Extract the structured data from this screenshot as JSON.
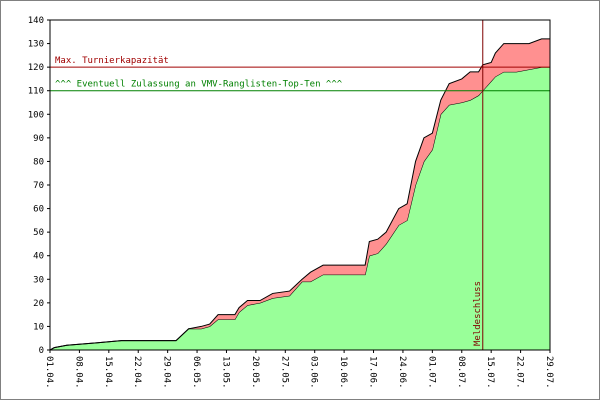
{
  "chart_data": {
    "type": "stacked-area",
    "x": [
      "01.04.",
      "02.04.",
      "05.04.",
      "12.04.",
      "18.04.",
      "01.05.",
      "04.05.",
      "07.05.",
      "09.05.",
      "11.05.",
      "15.05.",
      "16.05.",
      "18.05.",
      "21.05.",
      "24.05.",
      "28.05.",
      "31.05.",
      "02.06.",
      "05.06.",
      "09.06.",
      "15.06.",
      "16.06.",
      "18.06.",
      "20.06.",
      "23.06.",
      "25.06.",
      "27.06.",
      "29.06.",
      "01.07.",
      "03.07.",
      "05.07.",
      "08.07.",
      "10.07.",
      "12.07.",
      "13.07.",
      "15.07.",
      "16.07.",
      "18.07.",
      "21.07.",
      "24.07.",
      "27.07.",
      "29.07."
    ],
    "series": [
      {
        "color": "#99ff99",
        "values": [
          0,
          1,
          2,
          3,
          4,
          4,
          9,
          9,
          10,
          13,
          13,
          16,
          19,
          20,
          22,
          23,
          29,
          29,
          32,
          32,
          32,
          40,
          41,
          45,
          53,
          55,
          70,
          80,
          85,
          100,
          104,
          105,
          106,
          108,
          110,
          114,
          116,
          118,
          118,
          119,
          120,
          120
        ]
      },
      {
        "color": "#ff9090",
        "values": [
          0,
          0,
          0,
          0,
          0,
          0,
          0,
          1,
          1,
          2,
          2,
          2,
          2,
          1,
          2,
          2,
          1,
          4,
          4,
          4,
          4,
          6,
          6,
          5,
          7,
          7,
          10,
          10,
          7,
          6,
          9,
          10,
          12,
          10,
          11,
          8,
          10,
          12,
          12,
          11,
          12,
          12
        ]
      }
    ],
    "xlim": [
      "01.04.",
      "29.07."
    ],
    "xticks": [
      "01.04.",
      "08.04.",
      "15.04.",
      "22.04.",
      "29.04.",
      "06.05.",
      "13.05.",
      "20.05.",
      "27.05.",
      "03.06.",
      "10.06.",
      "17.06.",
      "24.06.",
      "01.07.",
      "08.07.",
      "15.07.",
      "22.07.",
      "29.07."
    ],
    "ylim": [
      0,
      140
    ],
    "yticks": [
      0,
      10,
      20,
      30,
      40,
      50,
      60,
      70,
      80,
      90,
      100,
      110,
      120,
      130,
      140
    ],
    "hlines": [
      {
        "value": 120,
        "label": "Max. Turnierkapazität",
        "color": "#a00000"
      },
      {
        "value": 110,
        "label": "^^^ Eventuell Zulassung an VMV-Ranglisten-Top-Ten ^^^",
        "color": "#008000"
      }
    ],
    "vline": {
      "x": "13.07.",
      "label": "Meldeschluss",
      "color": "#800000"
    }
  }
}
